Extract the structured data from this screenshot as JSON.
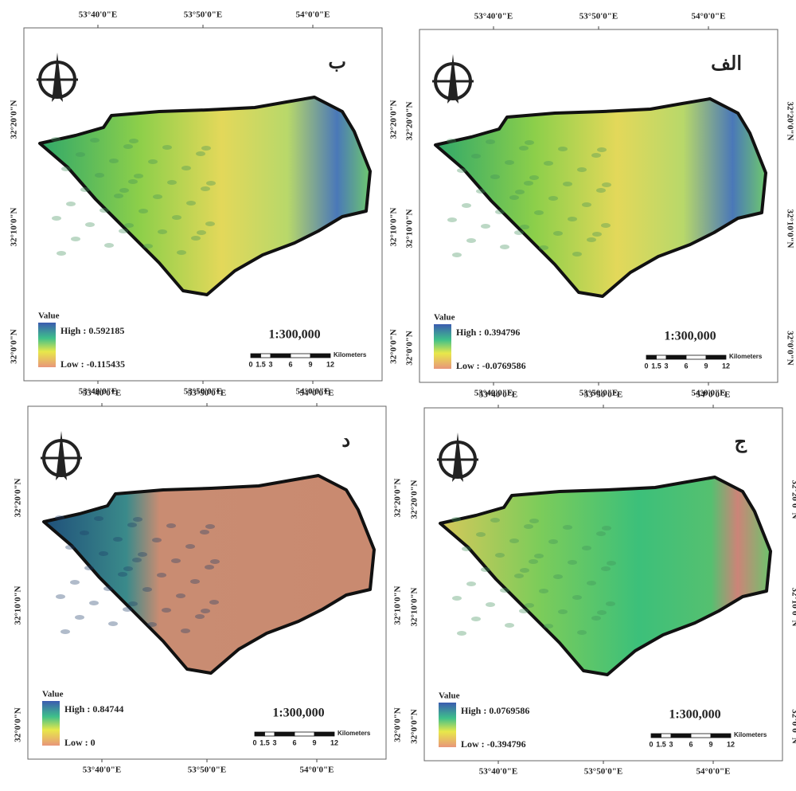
{
  "panels": [
    {
      "label": "ب",
      "legend_title": "Value",
      "high": "High : 0.592185",
      "low": "Low : -0.115435",
      "scale": "1:300,000",
      "scalebar_ticks": [
        0,
        1.5,
        3,
        6,
        9,
        12
      ],
      "scalebar_unit": "Kilometers",
      "lon_labels": [
        "53°40'0\"E",
        "53°50'0\"E",
        "54°0'0\"E"
      ],
      "lat_labels": [
        "32°20'0\"N",
        "32°10'0\"N",
        "32°0'0\"N"
      ]
    },
    {
      "label": "الف",
      "legend_title": "Value",
      "high": "High : 0.394796",
      "low": "Low : -0.0769586",
      "scale": "1:300,000",
      "scalebar_ticks": [
        0,
        1.5,
        3,
        6,
        9,
        12
      ],
      "scalebar_unit": "Kilometers",
      "lon_labels": [
        "53°40'0\"E",
        "53°50'0\"E",
        "54°0'0\"E"
      ],
      "lat_labels": [
        "32°20'0\"N",
        "32°10'0\"N",
        "32°0'0\"N"
      ]
    },
    {
      "label": "د",
      "legend_title": "Value",
      "high": "High : 0.84744",
      "low": "Low : 0",
      "scale": "1:300,000",
      "scalebar_ticks": [
        0,
        1.5,
        3,
        6,
        9,
        12
      ],
      "scalebar_unit": "Kilometers",
      "lon_labels": [
        "53°40'0\"E",
        "53°50'0\"E",
        "54°0'0\"E"
      ],
      "lat_labels": [
        "32°20'0\"N",
        "32°10'0\"N",
        "32°0'0\"N"
      ]
    },
    {
      "label": "ج",
      "legend_title": "Value",
      "high": "High : 0.0769586",
      "low": "Low : -0.394796",
      "scale": "1:300,000",
      "scalebar_ticks": [
        0,
        1.5,
        3,
        6,
        9,
        12
      ],
      "scalebar_unit": "Kilometers",
      "lon_labels": [
        "53°40'0\"E",
        "53°50'0\"E",
        "54°0'0\"E"
      ],
      "lat_labels": [
        "32°20'0\"N",
        "32°10'0\"N",
        "32°0'0\"N"
      ]
    }
  ]
}
